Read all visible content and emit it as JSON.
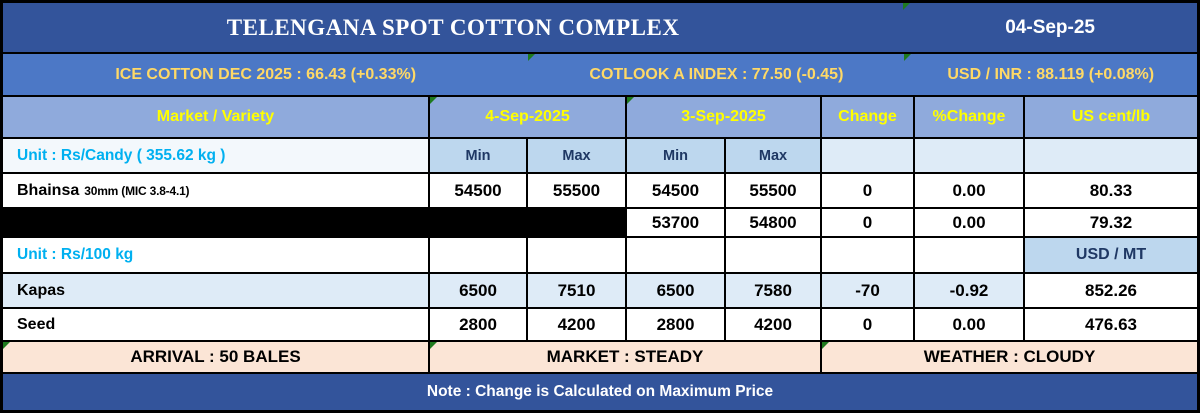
{
  "title": {
    "text": "TELENGANA SPOT COTTON COMPLEX",
    "date": "04-Sep-25"
  },
  "ticker": {
    "ice": "ICE COTTON DEC 2025 : 66.43 (+0.33%)",
    "cotlook": "COTLOOK A INDEX : 77.50 (-0.45)",
    "usdinr": "USD / INR : 88.119 (+0.08%)"
  },
  "table": {
    "headers": {
      "market": "Market / Variety",
      "day1": "4-Sep-2025",
      "day2": "3-Sep-2025",
      "change": "Change",
      "pct_change": "%Change",
      "us_cent": "US cent/lb",
      "min": "Min",
      "max": "Max",
      "usd_mt": "USD / MT"
    },
    "unit_candy": "Unit : Rs/Candy ( 355.62 kg )",
    "unit_100kg": "Unit : Rs/100 kg",
    "rows": {
      "bhainsa": {
        "name": "Bhainsa",
        "spec": "30mm (MIC 3.8-4.1)",
        "d1min": "54500",
        "d1max": "55500",
        "d2min": "54500",
        "d2max": "55500",
        "change": "0",
        "pct": "0.00",
        "us": "80.33"
      },
      "redacted": {
        "d2min": "53700",
        "d2max": "54800",
        "change": "0",
        "pct": "0.00",
        "us": "79.32"
      },
      "kapas": {
        "name": "Kapas",
        "d1min": "6500",
        "d1max": "7510",
        "d2min": "6500",
        "d2max": "7580",
        "change": "-70",
        "pct": "-0.92",
        "us": "852.26"
      },
      "seed": {
        "name": "Seed",
        "d1min": "2800",
        "d1max": "4200",
        "d2min": "2800",
        "d2max": "4200",
        "change": "0",
        "pct": "0.00",
        "us": "476.63"
      }
    }
  },
  "summary": {
    "arrival": "ARRIVAL : 50 BALES",
    "market": "MARKET : STEADY",
    "weather": "WEATHER : CLOUDY"
  },
  "note": "Note : Change is Calculated on Maximum Price",
  "colors": {
    "title_bar": "#33549B",
    "ticker_bar": "#4C78C6",
    "header_row": "#8FAADC",
    "minmax_cell": "#BDD7EE",
    "row_tint": "#DEEBF7",
    "summary_bar": "#FBE5D6",
    "header_text": "#FFFF00",
    "ticker_text": "#FFD966",
    "unit_text": "#00B0F0",
    "navy_text": "#1F3864"
  }
}
